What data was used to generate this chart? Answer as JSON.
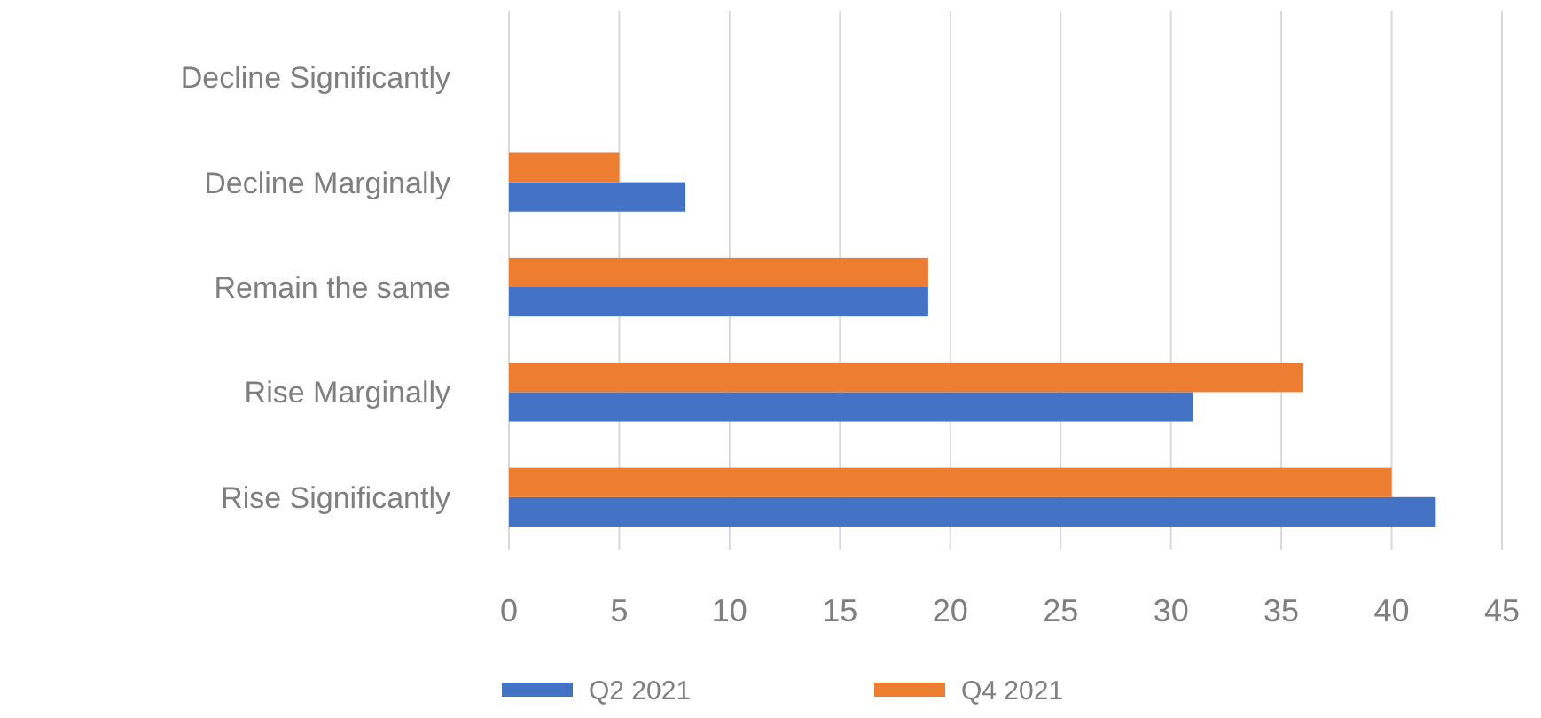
{
  "chart_data": {
    "type": "bar",
    "orientation": "horizontal",
    "categories": [
      "Decline Significantly",
      "Decline Marginally",
      "Remain the same",
      "Rise Marginally",
      "Rise Significantly"
    ],
    "series": [
      {
        "name": "Q2 2021",
        "color": "#4472c4",
        "values": [
          0,
          8,
          19,
          31,
          42
        ]
      },
      {
        "name": "Q4 2021",
        "color": "#ed7d31",
        "values": [
          0,
          5,
          19,
          36,
          40
        ]
      }
    ],
    "xlim": [
      0,
      45
    ],
    "xticks": [
      0,
      5,
      10,
      15,
      20,
      25,
      30,
      35,
      40,
      45
    ],
    "grid": "x",
    "legend": "bottom"
  }
}
